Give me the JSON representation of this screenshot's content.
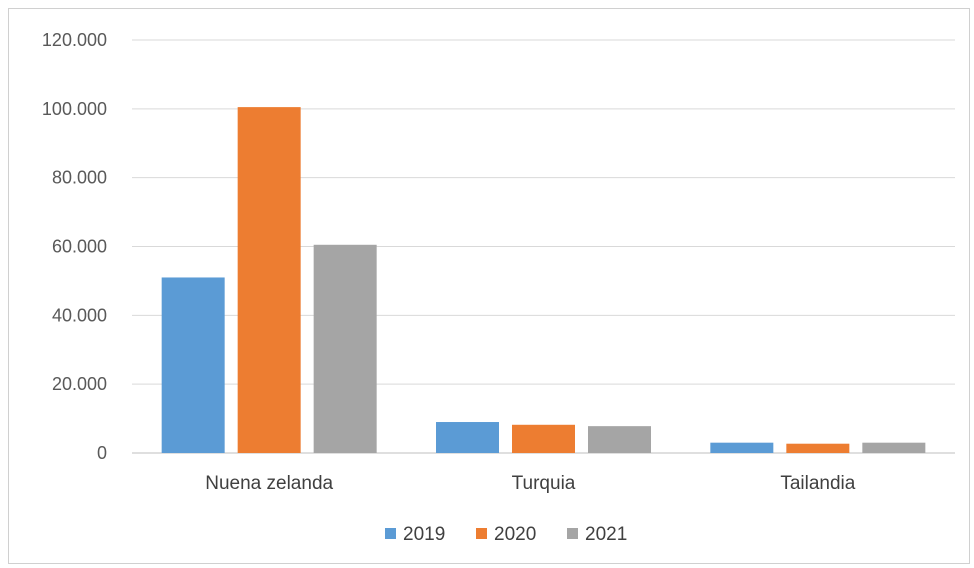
{
  "chart_data": {
    "type": "bar",
    "categories": [
      "Nuena zelanda",
      "Turquia",
      "Tailandia"
    ],
    "series": [
      {
        "name": "2019",
        "color": "#5b9bd5",
        "values": [
          51000,
          9000,
          3000
        ]
      },
      {
        "name": "2020",
        "color": "#ed7d31",
        "values": [
          100500,
          8200,
          2700
        ]
      },
      {
        "name": "2021",
        "color": "#a5a5a5",
        "values": [
          60500,
          7800,
          3000
        ]
      }
    ],
    "ylim": [
      0,
      120000
    ],
    "yticks": [
      0,
      20000,
      40000,
      60000,
      80000,
      100000,
      120000
    ],
    "ytick_labels": [
      "0",
      "20.000",
      "40.000",
      "60.000",
      "80.000",
      "100.000",
      "120.000"
    ],
    "title": "",
    "xlabel": "",
    "ylabel": "",
    "grid": true,
    "legend": "bottom"
  }
}
